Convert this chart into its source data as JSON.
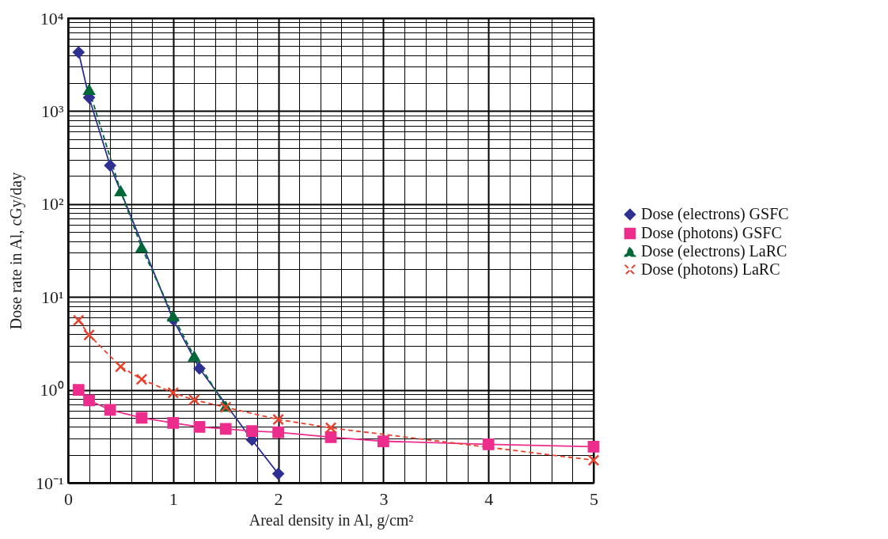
{
  "chart_data": {
    "type": "line",
    "xlabel": "Areal density in Al, g/cm²",
    "ylabel": "Dose rate in Al, cGy/day",
    "log": "y",
    "grid": true,
    "legend": "right",
    "xlim": [
      0,
      5
    ],
    "xticks": [
      0,
      1,
      2,
      3,
      4,
      5
    ],
    "ylim": [
      0.1,
      10000
    ],
    "yticks": [
      {
        "value": 0.1,
        "label": "10⁻¹"
      },
      {
        "value": 1,
        "label": "10⁰"
      },
      {
        "value": 10,
        "label": "10¹"
      },
      {
        "value": 100,
        "label": "10²"
      },
      {
        "value": 1000,
        "label": "10³"
      },
      {
        "value": 10000,
        "label": "10⁴"
      }
    ],
    "series": [
      {
        "name": "Dose (electrons) GSFC",
        "color": "#2e3192",
        "marker": "diamond",
        "line_style": "solid",
        "x": [
          0.1,
          0.2,
          0.4,
          1.0,
          1.25,
          1.75,
          2.0
        ],
        "values": [
          4300,
          1400,
          260,
          5.7,
          1.7,
          0.29,
          0.125
        ]
      },
      {
        "name": "Dose (photons) GSFC",
        "color": "#ec2d8c",
        "marker": "square",
        "line_style": "solid",
        "x": [
          0.1,
          0.2,
          0.4,
          0.7,
          1.0,
          1.25,
          1.5,
          1.75,
          2.0,
          2.5,
          3,
          4,
          5
        ],
        "values": [
          1.0,
          0.77,
          0.61,
          0.5,
          0.44,
          0.4,
          0.38,
          0.36,
          0.35,
          0.31,
          0.28,
          0.26,
          0.245
        ]
      },
      {
        "name": "Dose (electrons) LaRC",
        "color": "#006838",
        "marker": "triangle",
        "line_style": "dashed",
        "x": [
          0.2,
          0.5,
          0.7,
          1.0,
          1.2,
          1.5
        ],
        "values": [
          1700,
          138,
          34,
          6.2,
          2.3,
          0.66
        ]
      },
      {
        "name": "Dose (photons) LaRC",
        "color": "#e8412c",
        "marker": "cross",
        "line_style": "dashed",
        "x": [
          0.1,
          0.2,
          0.5,
          0.7,
          1.0,
          1.2,
          1.5,
          2.0,
          2.5,
          5.0
        ],
        "values": [
          5.6,
          3.9,
          1.78,
          1.3,
          0.93,
          0.78,
          0.65,
          0.48,
          0.39,
          0.175
        ]
      }
    ]
  }
}
